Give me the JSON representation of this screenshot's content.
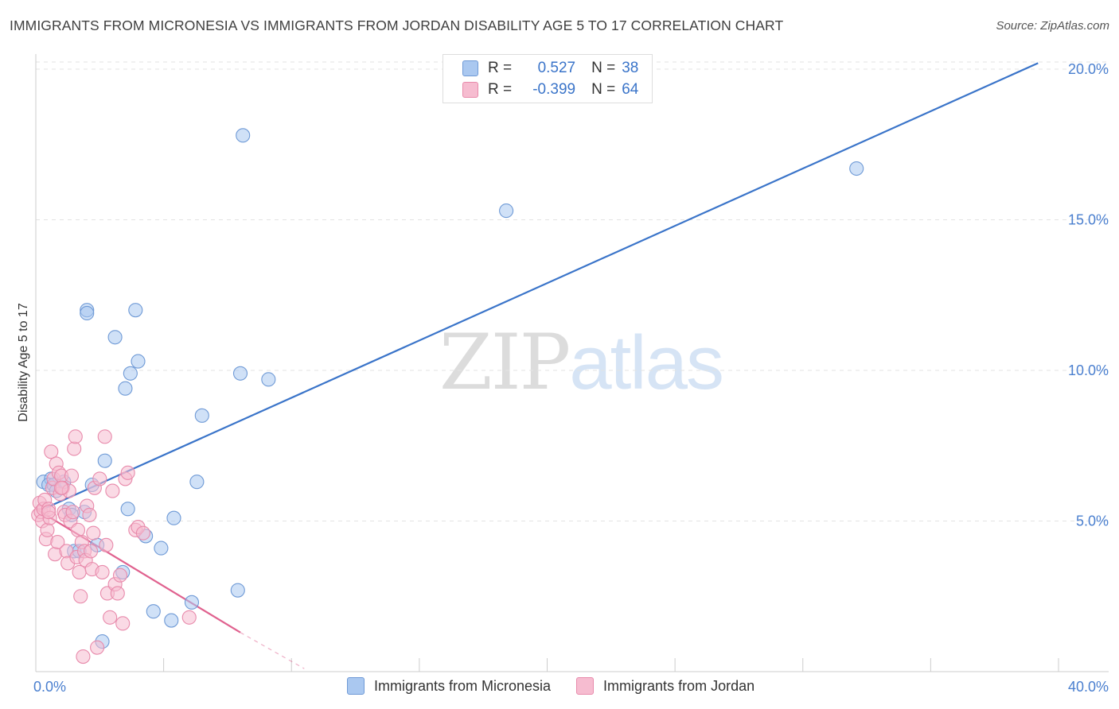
{
  "title": "IMMIGRANTS FROM MICRONESIA VS IMMIGRANTS FROM JORDAN DISABILITY AGE 5 TO 17 CORRELATION CHART",
  "source": "Source: ZipAtlas.com",
  "watermark": {
    "part1": "ZIP",
    "part2": "atlas"
  },
  "colors": {
    "blue_fill": "#aac8f0",
    "blue_stroke": "#6f9ad6",
    "blue_line": "#3a74c9",
    "pink_fill": "#f6bcd0",
    "pink_stroke": "#e88aab",
    "pink_line": "#e0628f",
    "tick_label": "#4a7fcf",
    "grid": "#e3e3e3"
  },
  "legend": {
    "rows": [
      {
        "r_label": "R =",
        "r_value": "0.527",
        "n_label": "N =",
        "n_value": "38"
      },
      {
        "r_label": "R =",
        "r_value": "-0.399",
        "n_label": "N =",
        "n_value": "64"
      }
    ]
  },
  "chart_data": {
    "type": "scatter",
    "title": "IMMIGRANTS FROM MICRONESIA VS IMMIGRANTS FROM JORDAN DISABILITY AGE 5 TO 17 CORRELATION CHART",
    "xlabel": "",
    "ylabel": "Disability Age 5 to 17",
    "xlim": [
      0,
      40
    ],
    "ylim": [
      0,
      20.5
    ],
    "x_tick_labels": [
      "0.0%",
      "40.0%"
    ],
    "y_ticks": [
      5,
      10,
      15,
      20
    ],
    "y_tick_labels": [
      "5.0%",
      "10.0%",
      "15.0%",
      "20.0%"
    ],
    "series": [
      {
        "name": "Immigrants from Micronesia",
        "color": "blue",
        "r": 0.527,
        "n": 38,
        "trend": {
          "x": [
            0.3,
            39.2
          ],
          "y": [
            5.4,
            20.2
          ]
        },
        "points": [
          [
            0.3,
            6.3
          ],
          [
            0.6,
            6.4
          ],
          [
            0.5,
            6.2
          ],
          [
            0.7,
            6.2
          ],
          [
            0.8,
            6.0
          ],
          [
            1.3,
            5.4
          ],
          [
            1.5,
            4.0
          ],
          [
            1.7,
            4.0
          ],
          [
            1.4,
            5.2
          ],
          [
            1.9,
            5.3
          ],
          [
            2.0,
            12.0
          ],
          [
            2.0,
            11.9
          ],
          [
            2.2,
            6.2
          ],
          [
            2.4,
            4.2
          ],
          [
            2.7,
            7.0
          ],
          [
            2.6,
            1.0
          ],
          [
            3.1,
            11.1
          ],
          [
            3.4,
            3.3
          ],
          [
            3.5,
            9.4
          ],
          [
            3.6,
            5.4
          ],
          [
            3.7,
            9.9
          ],
          [
            3.9,
            12.0
          ],
          [
            4.0,
            10.3
          ],
          [
            4.3,
            4.5
          ],
          [
            4.6,
            2.0
          ],
          [
            4.9,
            4.1
          ],
          [
            5.3,
            1.7
          ],
          [
            5.4,
            5.1
          ],
          [
            6.1,
            2.3
          ],
          [
            6.3,
            6.3
          ],
          [
            6.5,
            8.5
          ],
          [
            7.9,
            2.7
          ],
          [
            8.0,
            9.9
          ],
          [
            8.1,
            17.8
          ],
          [
            9.1,
            9.7
          ],
          [
            18.4,
            15.3
          ],
          [
            32.1,
            16.7
          ],
          [
            1.1,
            6.3
          ]
        ]
      },
      {
        "name": "Immigrants from Jordan",
        "color": "pink",
        "r": -0.399,
        "n": 64,
        "trend": {
          "x": [
            0.0,
            8.0
          ],
          "y": [
            5.4,
            1.3
          ]
        },
        "trend_extension": {
          "x": [
            8.0,
            10.5
          ],
          "y": [
            1.3,
            0.1
          ]
        },
        "points": [
          [
            0.1,
            5.2
          ],
          [
            0.15,
            5.6
          ],
          [
            0.2,
            5.3
          ],
          [
            0.25,
            5.0
          ],
          [
            0.3,
            5.4
          ],
          [
            0.35,
            5.7
          ],
          [
            0.4,
            4.4
          ],
          [
            0.45,
            4.7
          ],
          [
            0.5,
            5.4
          ],
          [
            0.55,
            5.1
          ],
          [
            0.6,
            7.3
          ],
          [
            0.65,
            6.1
          ],
          [
            0.7,
            6.4
          ],
          [
            0.75,
            3.9
          ],
          [
            0.8,
            6.9
          ],
          [
            0.85,
            4.3
          ],
          [
            0.9,
            6.6
          ],
          [
            0.95,
            5.9
          ],
          [
            1.0,
            6.5
          ],
          [
            1.05,
            6.1
          ],
          [
            1.1,
            5.3
          ],
          [
            1.15,
            5.2
          ],
          [
            1.2,
            4.0
          ],
          [
            1.25,
            3.6
          ],
          [
            1.3,
            6.0
          ],
          [
            1.35,
            5.0
          ],
          [
            1.4,
            6.5
          ],
          [
            1.45,
            5.3
          ],
          [
            1.5,
            7.4
          ],
          [
            1.55,
            7.8
          ],
          [
            1.6,
            3.8
          ],
          [
            1.65,
            4.7
          ],
          [
            1.7,
            3.3
          ],
          [
            1.75,
            2.5
          ],
          [
            1.8,
            4.3
          ],
          [
            1.85,
            0.5
          ],
          [
            1.9,
            4.0
          ],
          [
            1.95,
            3.7
          ],
          [
            2.0,
            5.5
          ],
          [
            2.1,
            5.2
          ],
          [
            2.15,
            4.0
          ],
          [
            2.2,
            3.4
          ],
          [
            2.25,
            4.6
          ],
          [
            2.3,
            6.1
          ],
          [
            2.4,
            0.8
          ],
          [
            2.5,
            6.4
          ],
          [
            2.6,
            3.3
          ],
          [
            2.7,
            7.8
          ],
          [
            2.75,
            4.2
          ],
          [
            2.8,
            2.6
          ],
          [
            2.9,
            1.8
          ],
          [
            3.0,
            6.0
          ],
          [
            3.1,
            2.9
          ],
          [
            3.2,
            2.6
          ],
          [
            3.3,
            3.2
          ],
          [
            3.4,
            1.6
          ],
          [
            3.5,
            6.4
          ],
          [
            3.6,
            6.6
          ],
          [
            3.9,
            4.7
          ],
          [
            4.0,
            4.8
          ],
          [
            4.2,
            4.6
          ],
          [
            6.0,
            1.8
          ],
          [
            0.5,
            5.3
          ],
          [
            1.0,
            6.1
          ]
        ]
      }
    ]
  },
  "bottom_legend": [
    {
      "label": "Immigrants from Micronesia"
    },
    {
      "label": "Immigrants from Jordan"
    }
  ]
}
